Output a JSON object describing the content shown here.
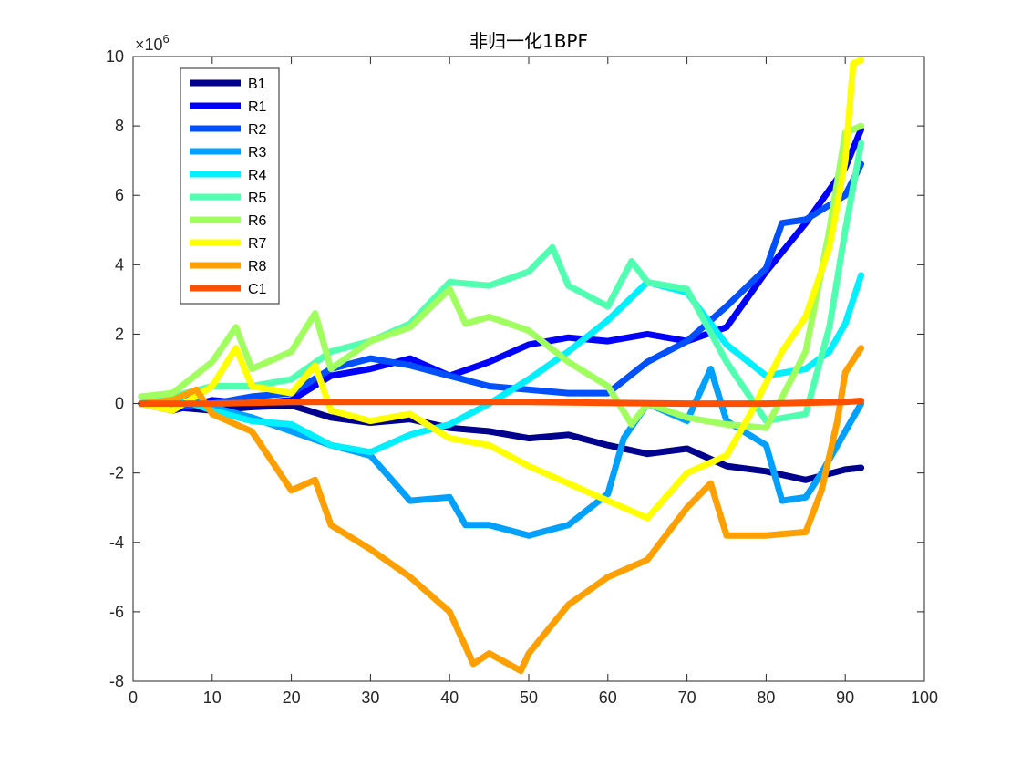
{
  "chart_data": {
    "type": "line",
    "title": "非归一化1BPF",
    "xlabel": "",
    "ylabel": "",
    "xlim": [
      0,
      100
    ],
    "ylim": [
      -8,
      10
    ],
    "x_ticks": [
      0,
      10,
      20,
      30,
      40,
      50,
      60,
      70,
      80,
      90,
      100
    ],
    "y_ticks": [
      -8,
      -6,
      -4,
      -2,
      0,
      2,
      4,
      6,
      8,
      10
    ],
    "y_multiplier": {
      "base": "×10",
      "exponent": "6"
    },
    "grid": false,
    "legend_position": "top-left",
    "series": [
      {
        "name": "B1",
        "color": "#00008f",
        "points": [
          [
            1,
            0
          ],
          [
            5,
            -0.1
          ],
          [
            10,
            -0.2
          ],
          [
            15,
            -0.1
          ],
          [
            20,
            -0.05
          ],
          [
            25,
            -0.4
          ],
          [
            30,
            -0.55
          ],
          [
            35,
            -0.45
          ],
          [
            40,
            -0.7
          ],
          [
            45,
            -0.8
          ],
          [
            50,
            -1.0
          ],
          [
            55,
            -0.9
          ],
          [
            60,
            -1.2
          ],
          [
            65,
            -1.45
          ],
          [
            70,
            -1.3
          ],
          [
            75,
            -1.8
          ],
          [
            80,
            -1.95
          ],
          [
            85,
            -2.2
          ],
          [
            90,
            -1.9
          ],
          [
            92,
            -1.85
          ]
        ]
      },
      {
        "name": "R1",
        "color": "#0000ff",
        "points": [
          [
            1,
            0
          ],
          [
            5,
            -0.2
          ],
          [
            10,
            0.1
          ],
          [
            15,
            0.0
          ],
          [
            20,
            0.1
          ],
          [
            25,
            0.8
          ],
          [
            30,
            1.0
          ],
          [
            35,
            1.3
          ],
          [
            40,
            0.8
          ],
          [
            45,
            1.2
          ],
          [
            50,
            1.7
          ],
          [
            55,
            1.9
          ],
          [
            60,
            1.8
          ],
          [
            65,
            2.0
          ],
          [
            70,
            1.8
          ],
          [
            75,
            2.2
          ],
          [
            80,
            3.8
          ],
          [
            85,
            5.2
          ],
          [
            90,
            6.8
          ],
          [
            92,
            7.9
          ]
        ]
      },
      {
        "name": "R2",
        "color": "#0050ff",
        "points": [
          [
            1,
            0
          ],
          [
            5,
            -0.1
          ],
          [
            10,
            0.0
          ],
          [
            15,
            0.2
          ],
          [
            20,
            0.3
          ],
          [
            25,
            1.0
          ],
          [
            30,
            1.3
          ],
          [
            35,
            1.1
          ],
          [
            40,
            0.8
          ],
          [
            45,
            0.5
          ],
          [
            50,
            0.4
          ],
          [
            55,
            0.3
          ],
          [
            60,
            0.3
          ],
          [
            65,
            1.2
          ],
          [
            70,
            1.8
          ],
          [
            75,
            2.8
          ],
          [
            80,
            3.9
          ],
          [
            82,
            5.2
          ],
          [
            85,
            5.3
          ],
          [
            90,
            6.0
          ],
          [
            92,
            6.9
          ]
        ]
      },
      {
        "name": "R3",
        "color": "#00a0ff",
        "points": [
          [
            1,
            0
          ],
          [
            5,
            0.3
          ],
          [
            10,
            -0.1
          ],
          [
            15,
            -0.4
          ],
          [
            20,
            -0.8
          ],
          [
            25,
            -1.2
          ],
          [
            30,
            -1.5
          ],
          [
            35,
            -2.8
          ],
          [
            40,
            -2.7
          ],
          [
            42,
            -3.5
          ],
          [
            45,
            -3.5
          ],
          [
            50,
            -3.8
          ],
          [
            55,
            -3.5
          ],
          [
            60,
            -2.6
          ],
          [
            62,
            -1.0
          ],
          [
            65,
            0.0
          ],
          [
            70,
            -0.5
          ],
          [
            73,
            1.0
          ],
          [
            75,
            -0.5
          ],
          [
            80,
            -1.2
          ],
          [
            82,
            -2.8
          ],
          [
            85,
            -2.7
          ],
          [
            87,
            -2.0
          ],
          [
            90,
            -0.8
          ],
          [
            92,
            0.0
          ]
        ]
      },
      {
        "name": "R4",
        "color": "#00f0ff",
        "points": [
          [
            1,
            0
          ],
          [
            5,
            0.2
          ],
          [
            10,
            -0.2
          ],
          [
            15,
            -0.5
          ],
          [
            20,
            -0.6
          ],
          [
            25,
            -1.2
          ],
          [
            30,
            -1.4
          ],
          [
            35,
            -0.9
          ],
          [
            40,
            -0.6
          ],
          [
            45,
            0.0
          ],
          [
            50,
            0.7
          ],
          [
            55,
            1.5
          ],
          [
            60,
            2.4
          ],
          [
            65,
            3.5
          ],
          [
            70,
            3.2
          ],
          [
            75,
            1.7
          ],
          [
            80,
            0.8
          ],
          [
            85,
            1.0
          ],
          [
            88,
            1.5
          ],
          [
            90,
            2.3
          ],
          [
            92,
            3.7
          ]
        ]
      },
      {
        "name": "R5",
        "color": "#50ffaf",
        "points": [
          [
            1,
            0
          ],
          [
            5,
            0.2
          ],
          [
            10,
            0.5
          ],
          [
            15,
            0.5
          ],
          [
            20,
            0.7
          ],
          [
            25,
            1.5
          ],
          [
            30,
            1.8
          ],
          [
            35,
            2.3
          ],
          [
            40,
            3.5
          ],
          [
            45,
            3.4
          ],
          [
            50,
            3.8
          ],
          [
            53,
            4.5
          ],
          [
            55,
            3.4
          ],
          [
            60,
            2.8
          ],
          [
            63,
            4.1
          ],
          [
            65,
            3.5
          ],
          [
            70,
            3.3
          ],
          [
            75,
            1.2
          ],
          [
            80,
            -0.5
          ],
          [
            85,
            -0.3
          ],
          [
            88,
            2.2
          ],
          [
            90,
            5.0
          ],
          [
            92,
            7.5
          ]
        ]
      },
      {
        "name": "R6",
        "color": "#a0ff5f",
        "points": [
          [
            1,
            0.2
          ],
          [
            5,
            0.3
          ],
          [
            10,
            1.2
          ],
          [
            13,
            2.2
          ],
          [
            15,
            1.0
          ],
          [
            20,
            1.5
          ],
          [
            23,
            2.6
          ],
          [
            25,
            1.0
          ],
          [
            30,
            1.8
          ],
          [
            35,
            2.2
          ],
          [
            40,
            3.3
          ],
          [
            42,
            2.3
          ],
          [
            45,
            2.5
          ],
          [
            50,
            2.1
          ],
          [
            55,
            1.2
          ],
          [
            60,
            0.5
          ],
          [
            63,
            -0.6
          ],
          [
            65,
            0.0
          ],
          [
            70,
            -0.4
          ],
          [
            75,
            -0.6
          ],
          [
            80,
            -0.7
          ],
          [
            85,
            1.5
          ],
          [
            88,
            5.0
          ],
          [
            90,
            7.8
          ],
          [
            92,
            8.0
          ]
        ]
      },
      {
        "name": "R7",
        "color": "#ffff00",
        "points": [
          [
            1,
            0
          ],
          [
            5,
            -0.2
          ],
          [
            10,
            0.5
          ],
          [
            13,
            1.6
          ],
          [
            15,
            0.5
          ],
          [
            20,
            0.3
          ],
          [
            23,
            1.1
          ],
          [
            25,
            -0.2
          ],
          [
            30,
            -0.5
          ],
          [
            35,
            -0.3
          ],
          [
            40,
            -1.0
          ],
          [
            45,
            -1.2
          ],
          [
            50,
            -1.8
          ],
          [
            55,
            -2.3
          ],
          [
            60,
            -2.8
          ],
          [
            65,
            -3.3
          ],
          [
            70,
            -2.0
          ],
          [
            75,
            -1.5
          ],
          [
            78,
            -0.3
          ],
          [
            82,
            1.5
          ],
          [
            85,
            2.5
          ],
          [
            88,
            4.5
          ],
          [
            90,
            7.0
          ],
          [
            91,
            9.8
          ],
          [
            92,
            9.9
          ]
        ]
      },
      {
        "name": "R8",
        "color": "#ffa000",
        "points": [
          [
            1,
            0
          ],
          [
            5,
            0.1
          ],
          [
            8,
            0.4
          ],
          [
            10,
            -0.3
          ],
          [
            15,
            -0.8
          ],
          [
            20,
            -2.5
          ],
          [
            23,
            -2.2
          ],
          [
            25,
            -3.5
          ],
          [
            30,
            -4.2
          ],
          [
            35,
            -5.0
          ],
          [
            40,
            -6.0
          ],
          [
            43,
            -7.5
          ],
          [
            45,
            -7.2
          ],
          [
            49,
            -7.7
          ],
          [
            50,
            -7.2
          ],
          [
            55,
            -5.8
          ],
          [
            60,
            -5.0
          ],
          [
            65,
            -4.5
          ],
          [
            70,
            -3.0
          ],
          [
            73,
            -2.3
          ],
          [
            75,
            -3.8
          ],
          [
            80,
            -3.8
          ],
          [
            85,
            -3.7
          ],
          [
            87,
            -2.5
          ],
          [
            89,
            -0.5
          ],
          [
            90,
            0.9
          ],
          [
            92,
            1.6
          ]
        ]
      },
      {
        "name": "C1",
        "color": "#ff5000",
        "points": [
          [
            1,
            0
          ],
          [
            10,
            0.0
          ],
          [
            20,
            0.05
          ],
          [
            30,
            0.05
          ],
          [
            40,
            0.05
          ],
          [
            50,
            0.05
          ],
          [
            60,
            0.02
          ],
          [
            70,
            0.0
          ],
          [
            80,
            0.0
          ],
          [
            90,
            0.05
          ],
          [
            92,
            0.08
          ]
        ]
      }
    ]
  }
}
